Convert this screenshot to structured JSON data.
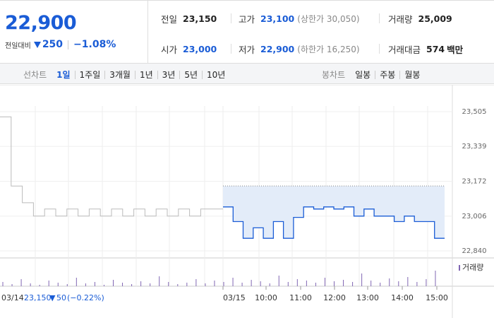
{
  "price": {
    "current": "22,900",
    "change_label": "전일대비",
    "change_abs": "250",
    "change_pct": "−1.08%"
  },
  "stats": {
    "prev_close": {
      "label": "전일",
      "value": "23,150"
    },
    "high": {
      "label": "고가",
      "value": "23,100",
      "extra": "(상한가 30,050)"
    },
    "volume": {
      "label": "거래량",
      "value": "25,009"
    },
    "open": {
      "label": "시가",
      "value": "23,000"
    },
    "low": {
      "label": "저가",
      "value": "22,900",
      "extra": "(하한가 16,250)"
    },
    "amount": {
      "label": "거래대금",
      "value": "574",
      "unit": "백만"
    }
  },
  "line_chart_tabs": {
    "label": "선차트",
    "options": [
      "1일",
      "1주일",
      "3개월",
      "1년",
      "3년",
      "5년",
      "10년"
    ],
    "active": "1일"
  },
  "candle_chart_tabs": {
    "label": "봉차트",
    "options": [
      "일봉",
      "주봉",
      "월봉"
    ]
  },
  "colors": {
    "accent": "#1a5cd6",
    "fill": "#e3ecf9",
    "prev_line": "#bbbbbb",
    "volume": "#8066b3"
  },
  "chart_data": {
    "type": "line",
    "y_ticks": [
      23505,
      23339,
      23172,
      23006,
      22840
    ],
    "y_labels": [
      "23,505",
      "23,339",
      "23,172",
      "23,006",
      "22,840"
    ],
    "ylim": [
      22840,
      23505
    ],
    "prev_day": {
      "date": "03/14",
      "close": "23,150",
      "change": "50",
      "change_pct": "(−0.22%)"
    },
    "today_date": "03/15",
    "x_labels": [
      "10:00",
      "11:00",
      "12:00",
      "13:00",
      "14:00",
      "15:00"
    ],
    "volume_label": "거래량",
    "prev_close_value": 23150,
    "series": [
      {
        "values": [
          23480,
          23150,
          23070,
          23006,
          23040,
          23006,
          23040,
          23006,
          23040,
          23006,
          23040,
          23006,
          23040,
          23006,
          23040,
          23006,
          23040,
          23006,
          23040,
          23040
        ]
      },
      {
        "values": [
          23050,
          22980,
          22900,
          22950,
          22900,
          22980,
          22900,
          23000,
          23050,
          23040,
          23050,
          23040,
          23050,
          23006,
          23040,
          23006,
          23006,
          22980,
          23006,
          22980,
          22980,
          22900
        ]
      }
    ]
  }
}
